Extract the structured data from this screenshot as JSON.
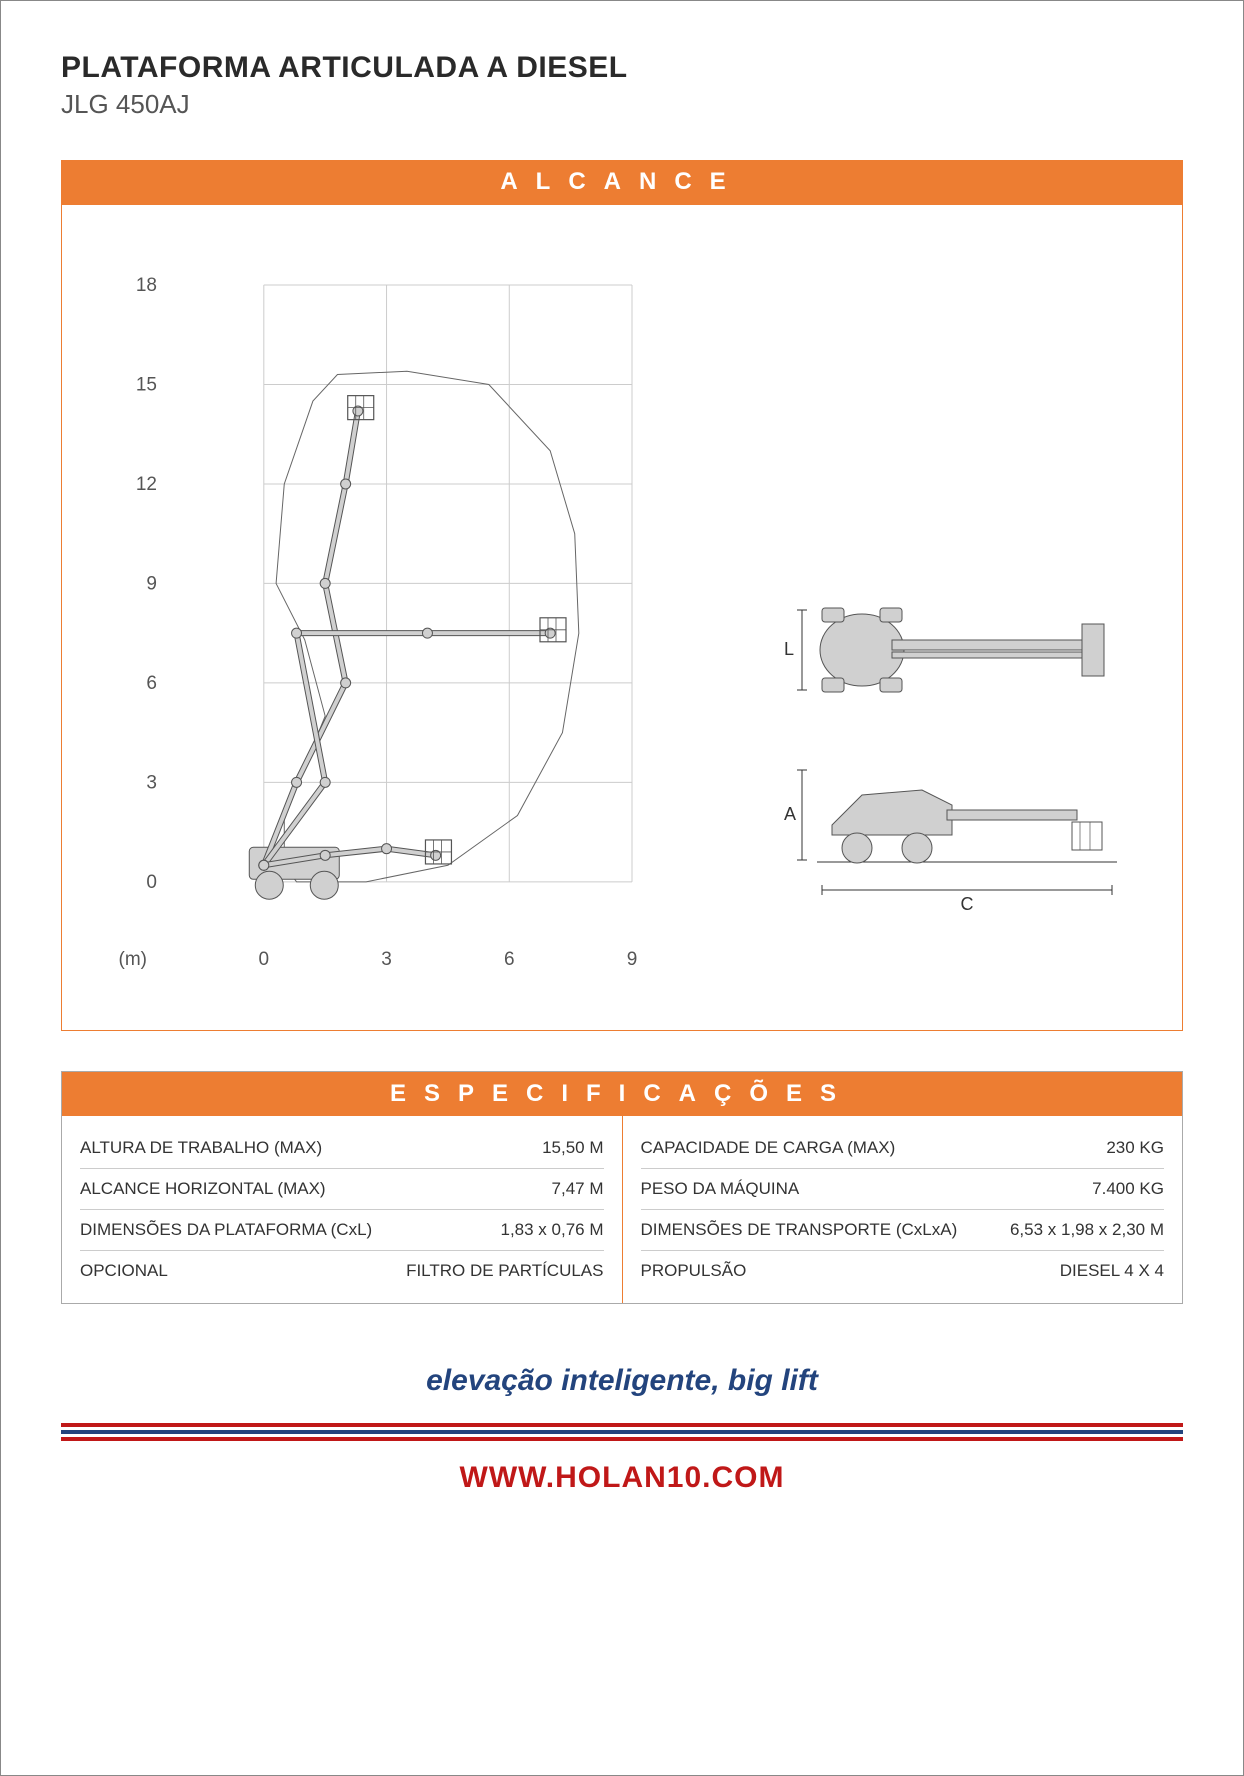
{
  "header": {
    "title": "PLATAFORMA ARTICULADA A DIESEL",
    "model": "JLG 450AJ"
  },
  "sections": {
    "reach_title": "ALCANCE",
    "specs_title": "ESPECIFICAÇÕES"
  },
  "reach_chart": {
    "type": "line-diagram",
    "x_label": "(m)",
    "x_ticks": [
      0,
      3,
      6,
      9
    ],
    "y_ticks": [
      0,
      3,
      6,
      9,
      12,
      15,
      18
    ],
    "x_range": [
      -2,
      9
    ],
    "y_range": [
      -1,
      18
    ],
    "grid_color": "#cccccc",
    "axis_color": "#888888",
    "tick_fontsize": 19,
    "tick_color": "#555555",
    "envelope_color": "#666666",
    "envelope_width": 1,
    "machine_fill": "#d0d0d0",
    "machine_stroke": "#555555",
    "background_color": "#ffffff",
    "envelope_path": [
      [
        0.8,
        0
      ],
      [
        0.5,
        0.5
      ],
      [
        0.5,
        2
      ],
      [
        1.5,
        5
      ],
      [
        1.0,
        7.3
      ],
      [
        0.3,
        9
      ],
      [
        0.5,
        12
      ],
      [
        1.2,
        14.5
      ],
      [
        1.8,
        15.3
      ],
      [
        3.5,
        15.4
      ],
      [
        5.5,
        15
      ],
      [
        7.0,
        13
      ],
      [
        7.6,
        10.5
      ],
      [
        7.7,
        7.5
      ],
      [
        7.3,
        4.5
      ],
      [
        6.2,
        2
      ],
      [
        4.5,
        0.5
      ],
      [
        2.5,
        0
      ],
      [
        0.8,
        0
      ]
    ],
    "boom_positions": [
      {
        "type": "up",
        "segments": [
          [
            0,
            0.5
          ],
          [
            0.8,
            3
          ],
          [
            2,
            6
          ],
          [
            1.5,
            9
          ],
          [
            2,
            12
          ],
          [
            2.3,
            14.2
          ]
        ],
        "platform": [
          2.1,
          14.0
        ]
      },
      {
        "type": "horizontal",
        "segments": [
          [
            0,
            0.5
          ],
          [
            1.5,
            3
          ],
          [
            0.8,
            7.5
          ],
          [
            4,
            7.5
          ],
          [
            7,
            7.5
          ]
        ],
        "platform": [
          6.8,
          7.3
        ]
      },
      {
        "type": "down",
        "segments": [
          [
            0,
            0.5
          ],
          [
            1.5,
            0.8
          ],
          [
            3,
            1
          ],
          [
            4.2,
            0.8
          ]
        ],
        "platform": [
          4.0,
          0.6
        ]
      }
    ]
  },
  "side_views": {
    "top": {
      "label": "L",
      "label_fontsize": 18
    },
    "side": {
      "label_height": "A",
      "label_length": "C",
      "label_fontsize": 18
    },
    "fill": "#d0d0d0",
    "stroke": "#555555"
  },
  "specs": {
    "left": [
      {
        "label": "ALTURA DE TRABALHO (MAX)",
        "value": "15,50 M"
      },
      {
        "label": "ALCANCE HORIZONTAL (MAX)",
        "value": "7,47 M"
      },
      {
        "label": "DIMENSÕES DA PLATAFORMA (CxL)",
        "value": "1,83 x 0,76 M"
      },
      {
        "label": "OPCIONAL",
        "value": "FILTRO DE PARTÍCULAS"
      }
    ],
    "right": [
      {
        "label": "CAPACIDADE DE CARGA (MAX)",
        "value": "230 KG"
      },
      {
        "label": "PESO DA MÁQUINA",
        "value": "7.400 KG"
      },
      {
        "label": "DIMENSÕES DE TRANSPORTE (CxLxA)",
        "value": "6,53 x 1,98 x 2,30 M"
      },
      {
        "label": "PROPULSÃO",
        "value": "DIESEL 4 X 4"
      }
    ]
  },
  "footer": {
    "tagline": "elevação inteligente, big lift",
    "url": "WWW.HOLAN10.COM",
    "stripe_red": "#c01818",
    "stripe_blue": "#23447d"
  },
  "colors": {
    "orange": "#ed7d32",
    "dark_blue": "#23447d",
    "red": "#c01818",
    "text": "#333333",
    "grid": "#cccccc"
  }
}
